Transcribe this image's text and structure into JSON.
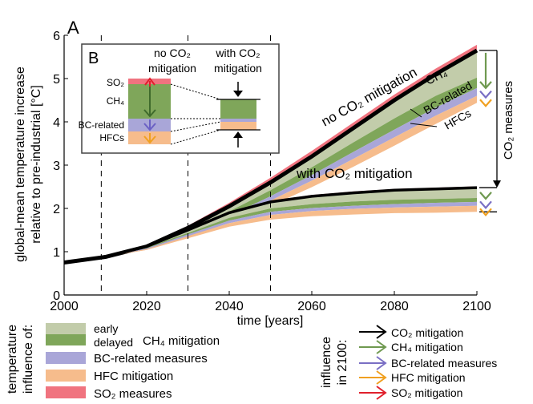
{
  "panel_letters": {
    "main": "A",
    "inset": "B"
  },
  "colors": {
    "early": "#c2ccaa",
    "ch4": "#7fa65a",
    "bc": "#a9a6d8",
    "hfc": "#f6bc8c",
    "so2": "#f0737f",
    "black": "#000000",
    "co2_arrow": "#000000",
    "ch4_arrow": "#6f9950",
    "bc_arrow": "#7a6fc4",
    "hfc_arrow": "#f0a020",
    "so2_arrow": "#e0202c"
  },
  "chart_data": {
    "type": "area",
    "xlabel": "time [years]",
    "ylabel_line1": "global-mean temperature increase",
    "ylabel_line2": "relative to pre-industrial [°C]",
    "xlim": [
      2000,
      2100
    ],
    "ylim": [
      0,
      6
    ],
    "x_ticks": [
      "2000",
      "2020",
      "2040",
      "2060",
      "2080",
      "2100"
    ],
    "y_ticks": [
      "0",
      "1",
      "2",
      "3",
      "4",
      "5",
      "6"
    ],
    "vlines": [
      2009,
      2030,
      2050
    ],
    "x": [
      2000,
      2010,
      2020,
      2030,
      2040,
      2050,
      2060,
      2070,
      2080,
      2090,
      2100
    ],
    "scenarios": [
      {
        "label": "no CO2 mitigation",
        "black": [
          0.75,
          0.88,
          1.12,
          1.55,
          2.05,
          2.6,
          3.2,
          3.85,
          4.5,
          5.1,
          5.65
        ],
        "so2_top": [
          0.75,
          0.88,
          1.14,
          1.6,
          2.13,
          2.71,
          3.33,
          3.98,
          4.63,
          5.23,
          5.78
        ],
        "early_bottom": [
          0.75,
          0.88,
          1.1,
          1.48,
          1.93,
          2.42,
          2.95,
          3.52,
          4.08,
          4.6,
          5.02
        ],
        "ch4_bottom": [
          0.75,
          0.88,
          1.08,
          1.42,
          1.83,
          2.28,
          2.77,
          3.3,
          3.82,
          4.33,
          4.78
        ],
        "bc_bottom": [
          0.75,
          0.88,
          1.06,
          1.38,
          1.76,
          2.18,
          2.64,
          3.14,
          3.64,
          4.14,
          4.6
        ],
        "hfc_bottom": [
          0.75,
          0.88,
          1.04,
          1.32,
          1.67,
          2.06,
          2.49,
          2.96,
          3.45,
          3.95,
          4.44
        ]
      },
      {
        "label": "with CO2 mitigation",
        "black": [
          0.75,
          0.88,
          1.12,
          1.5,
          1.9,
          2.15,
          2.28,
          2.36,
          2.42,
          2.45,
          2.48
        ],
        "so2_top": [
          0.75,
          0.88,
          1.14,
          1.53,
          1.93,
          2.18,
          2.31,
          2.39,
          2.45,
          2.48,
          2.51
        ],
        "early_bottom": [
          0.75,
          0.88,
          1.1,
          1.43,
          1.78,
          2.0,
          2.1,
          2.16,
          2.2,
          2.22,
          2.24
        ],
        "ch4_bottom": [
          0.75,
          0.88,
          1.08,
          1.4,
          1.72,
          1.92,
          2.01,
          2.06,
          2.1,
          2.13,
          2.15
        ],
        "bc_bottom": [
          0.75,
          0.88,
          1.06,
          1.36,
          1.66,
          1.85,
          1.94,
          1.99,
          2.02,
          2.04,
          2.06
        ],
        "hfc_bottom": [
          0.75,
          0.88,
          1.04,
          1.31,
          1.58,
          1.74,
          1.82,
          1.86,
          1.89,
          1.9,
          1.92
        ]
      }
    ],
    "annotations": {
      "no_co2": "no CO₂ mitigation",
      "with_co2": "with CO₂ mitigation",
      "ch4": "CH₄",
      "bc": "BC-related",
      "hfcs": "HFCs",
      "co2_measures": "CO₂ measures"
    },
    "right_bracket": {
      "top": 5.65,
      "bottom": 2.48,
      "ch4_end": 4.78,
      "bc_end": 4.6,
      "hfc_end": 4.44,
      "low_ch4_end": 2.15,
      "low_hfc_end": 1.92
    }
  },
  "inset": {
    "label_no": [
      "no CO₂",
      "mitigation"
    ],
    "label_with": [
      "with CO₂",
      "mitigation"
    ],
    "rows": [
      "SO₂",
      "CH₄",
      "BC-related",
      "HFCs"
    ]
  },
  "legend_fill": {
    "title": [
      "temperature",
      "influence of:"
    ],
    "items": [
      "early",
      "delayed",
      "CH₄ mitigation",
      "BC-related measures",
      "HFC mitigation",
      "SO₂ measures"
    ]
  },
  "legend_arrows": {
    "title": [
      "influence",
      "in 2100:"
    ],
    "items": [
      "CO₂ mitigation",
      "CH₄ mitigation",
      "BC-related measures",
      "HFC mitigation",
      "SO₂ mitigation"
    ]
  }
}
